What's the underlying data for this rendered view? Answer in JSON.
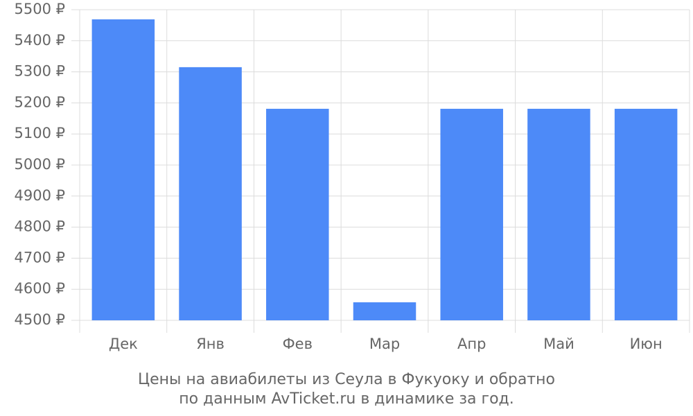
{
  "chart_data": {
    "type": "bar",
    "title": "Цены на авиабилеты из Сеула в Фукуоку и обратно",
    "subtitle": "по данным AvTicket.ru в динамике за год.",
    "categories": [
      "Дек",
      "Янв",
      "Фев",
      "Мар",
      "Апр",
      "Май",
      "Июн"
    ],
    "values": [
      5469,
      5315,
      5181,
      4558,
      5181,
      5181,
      5181
    ],
    "color": "#4d8af8",
    "ylim": [
      4500,
      5500
    ],
    "yticks": [
      {
        "value": 4500,
        "label": "4500 ₽"
      },
      {
        "value": 4600,
        "label": "4600 ₽"
      },
      {
        "value": 4700,
        "label": "4700 ₽"
      },
      {
        "value": 4800,
        "label": "4800 ₽"
      },
      {
        "value": 4900,
        "label": "4900 ₽"
      },
      {
        "value": 5000,
        "label": "5000 ₽"
      },
      {
        "value": 5100,
        "label": "5100 ₽"
      },
      {
        "value": 5200,
        "label": "5200 ₽"
      },
      {
        "value": 5300,
        "label": "5300 ₽"
      },
      {
        "value": 5400,
        "label": "5400 ₽"
      },
      {
        "value": 5500,
        "label": "5500 ₽"
      }
    ],
    "grid": true
  }
}
